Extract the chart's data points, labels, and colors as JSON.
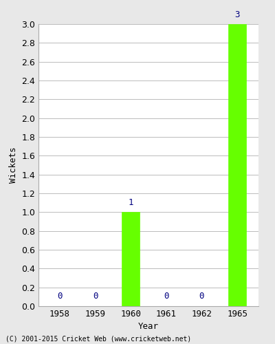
{
  "years": [
    1958,
    1959,
    1960,
    1961,
    1962,
    1965
  ],
  "wickets": [
    0,
    0,
    1,
    0,
    0,
    3
  ],
  "bar_color": "#66ff00",
  "bar_edge_color": "#66ff00",
  "label_color": "#000080",
  "xlabel": "Year",
  "ylabel": "Wickets",
  "ylim": [
    0.0,
    3.0
  ],
  "yticks": [
    0.0,
    0.2,
    0.4,
    0.6,
    0.8,
    1.0,
    1.2,
    1.4,
    1.6,
    1.8,
    2.0,
    2.2,
    2.4,
    2.6,
    2.8,
    3.0
  ],
  "grid_color": "#bbbbbb",
  "footer": "(C) 2001-2015 Cricket Web (www.cricketweb.net)",
  "bar_width": 0.5
}
